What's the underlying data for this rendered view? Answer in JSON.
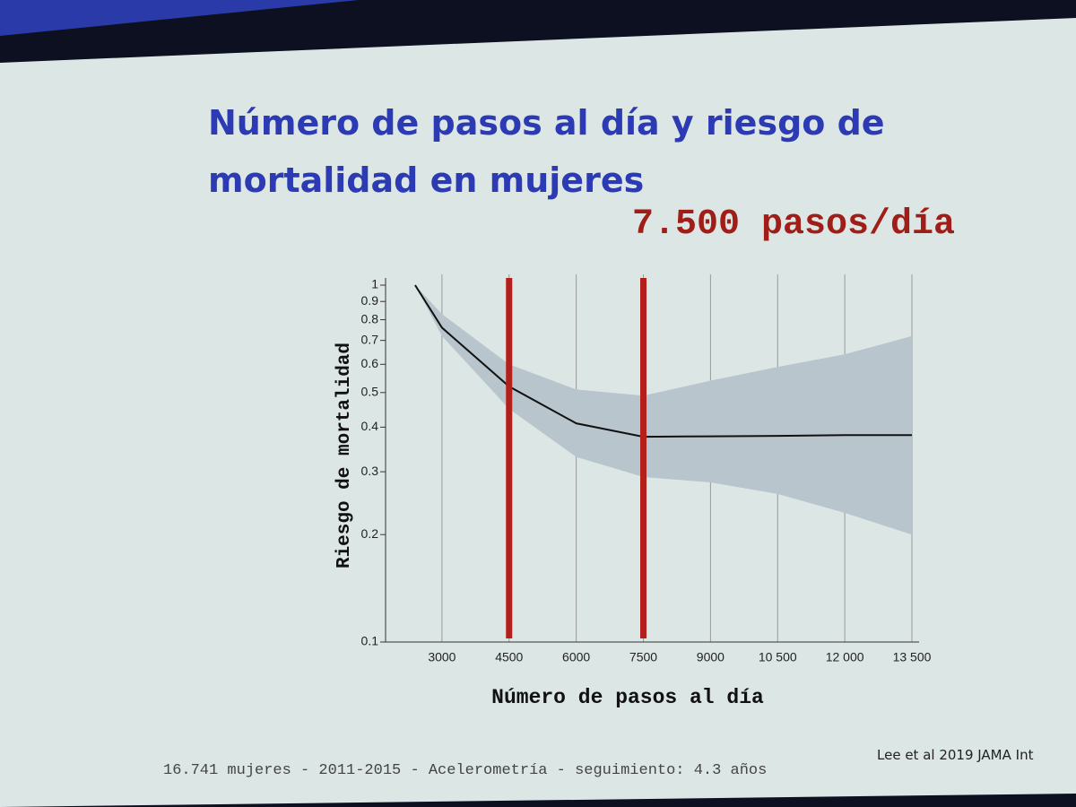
{
  "chart_data": {
    "type": "line",
    "title": "Número de pasos al día y riesgo de mortalidad en mujeres",
    "annotation": "7.500 pasos/día",
    "ylabel": "Riesgo de mortalidad",
    "xlabel": "Número de pasos al día",
    "footnote": "16.741 mujeres - 2011-2015 - Acelerometría - seguimiento: 4.3 años",
    "source": "Lee et al 2019 JAMA Int",
    "x": [
      2400,
      3000,
      4500,
      6000,
      7500,
      9000,
      10500,
      12000,
      13500
    ],
    "values": [
      1.0,
      0.76,
      0.52,
      0.41,
      0.376,
      0.377,
      0.378,
      0.38,
      0.38
    ],
    "lower": [
      1.0,
      0.72,
      0.45,
      0.33,
      0.29,
      0.28,
      0.26,
      0.23,
      0.2
    ],
    "upper": [
      1.0,
      0.83,
      0.6,
      0.51,
      0.49,
      0.54,
      0.59,
      0.64,
      0.72
    ],
    "color": "#111111",
    "band_color": "#b9c5cd",
    "reference_lines": [
      4500,
      7500
    ],
    "reference_color": "#b3201c",
    "xlim": [
      1740,
      13560
    ],
    "xticks": [
      3000,
      4500,
      6000,
      7500,
      9000,
      {
        "value": 10500,
        "label": "10 500"
      },
      {
        "value": 12000,
        "label": "12 000"
      },
      {
        "value": 13500,
        "label": "13 500"
      }
    ],
    "ylim": [
      0.1,
      1
    ],
    "log_y": true,
    "yticks": [
      0.1,
      0.2,
      0.3,
      0.4,
      0.5,
      0.6,
      0.7,
      0.8,
      0.9,
      1
    ],
    "grid": true
  }
}
